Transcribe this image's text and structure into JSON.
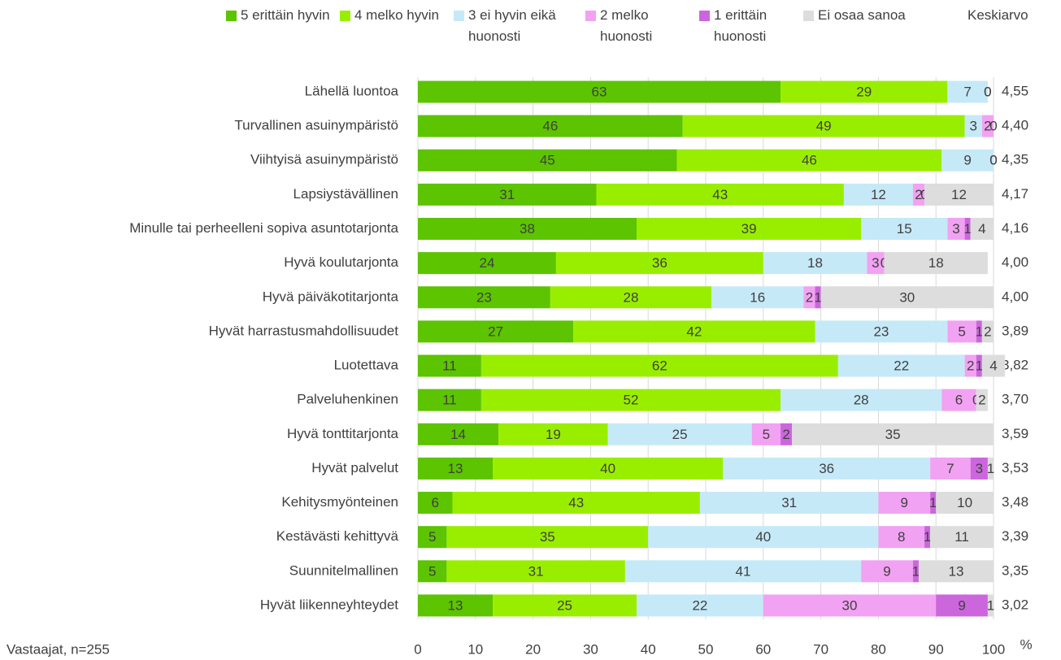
{
  "chart_data": {
    "type": "stacked-bar-horizontal",
    "categories": [
      "Lähellä luontoa",
      "Turvallinen asuinympäristö",
      "Viihtyisä asuinympäristö",
      "Lapsiystävällinen",
      "Minulle tai perheelleni sopiva asuntotarjonta",
      "Hyvä koulutarjonta",
      "Hyvä päiväkotitarjonta",
      "Hyvät harrastusmahdollisuudet",
      "Luotettava",
      "Palveluhenkinen",
      "Hyvä tonttitarjonta",
      "Hyvät palvelut",
      "Kehitysmyönteinen",
      "Kestävästi kehittyvä",
      "Suunnitelmallinen",
      "Hyvät liikenneyhteydet"
    ],
    "series": [
      {
        "name": "5 erittäin hyvin",
        "color": "#5cc400",
        "values": [
          63,
          46,
          45,
          31,
          38,
          24,
          23,
          27,
          11,
          11,
          14,
          13,
          6,
          5,
          5,
          13
        ]
      },
      {
        "name": "4 melko hyvin",
        "color": "#99ee00",
        "values": [
          29,
          49,
          46,
          43,
          39,
          36,
          28,
          42,
          62,
          52,
          19,
          40,
          43,
          35,
          31,
          25
        ]
      },
      {
        "name": "3 ei hyvin eikä huonosti",
        "color": "#c6e9f8",
        "values": [
          7,
          3,
          9,
          12,
          15,
          18,
          16,
          23,
          22,
          28,
          25,
          36,
          31,
          40,
          41,
          22
        ]
      },
      {
        "name": "2 melko huonosti",
        "color": "#f2a2f2",
        "values": [
          0,
          2,
          0,
          2,
          3,
          3,
          2,
          5,
          2,
          6,
          5,
          7,
          9,
          8,
          9,
          30
        ]
      },
      {
        "name": "1 erittäin huonosti",
        "color": "#cc66dd",
        "values": [
          0,
          0,
          0,
          0,
          1,
          0,
          1,
          1,
          1,
          0,
          2,
          3,
          1,
          1,
          1,
          9
        ]
      },
      {
        "name": "Ei osaa sanoa",
        "color": "#dddddd",
        "values": [
          null,
          null,
          null,
          12,
          4,
          18,
          30,
          2,
          4,
          2,
          35,
          1,
          10,
          11,
          13,
          1
        ]
      }
    ],
    "mean_title": "Keskiarvo",
    "means": [
      "4,55",
      "4,40",
      "4,35",
      "4,17",
      "4,16",
      "4,00",
      "4,00",
      "3,89",
      "3,82",
      "3,70",
      "3,59",
      "3,53",
      "3,48",
      "3,39",
      "3,35",
      "3,02"
    ],
    "xlim": [
      0,
      100
    ],
    "xticks": [
      0,
      10,
      20,
      30,
      40,
      50,
      60,
      70,
      80,
      90,
      100
    ],
    "x_unit": "%",
    "note": "Vastaajat, n=255",
    "grid": true
  }
}
